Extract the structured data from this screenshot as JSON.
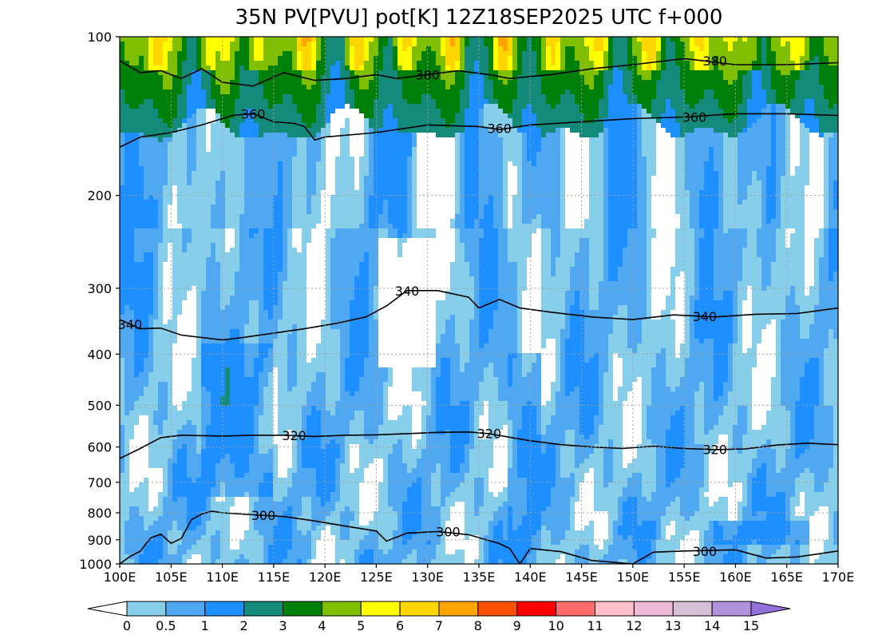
{
  "chart_data": {
    "type": "heatmap",
    "title": "35N PV[PVU] pot[K] 12Z18SEP2025 UTC f+000",
    "x_range": [
      100,
      170
    ],
    "x_ticks": [
      "100E",
      "105E",
      "110E",
      "115E",
      "120E",
      "125E",
      "130E",
      "135E",
      "140E",
      "145E",
      "150E",
      "155E",
      "160E",
      "165E",
      "170E"
    ],
    "y_scale": "log",
    "y_range": [
      1000,
      100
    ],
    "y_ticks": [
      100,
      200,
      300,
      400,
      500,
      600,
      700,
      800,
      900,
      1000
    ],
    "grid": true,
    "colorbar": {
      "levels": [
        "0",
        "0.5",
        "1",
        "2",
        "3",
        "4",
        "5",
        "6",
        "7",
        "8",
        "9",
        "10",
        "11",
        "12",
        "13",
        "14",
        "15"
      ],
      "colors": [
        "#87ceeb",
        "#4fa8f0",
        "#1e8fff",
        "#138a7a",
        "#00800a",
        "#7fbf00",
        "#ffff00",
        "#ffd700",
        "#ffa500",
        "#ff5000",
        "#ff0000",
        "#ff6a6a",
        "#ffc0cb",
        "#eebad6",
        "#d8bfd8",
        "#b392dc"
      ],
      "under_color": "#ffffff",
      "over_color": "#9370db"
    },
    "pv_fill_colors": {
      "lt0": "#ffffff",
      "0_0.5": "#87ceeb",
      "0.5_1": "#4fa8f0",
      "1_2": "#1e8fff",
      "2_3": "#138a7a",
      "3_4": "#00800a",
      "4_5": "#7fbf00",
      "5_6": "#ffff00",
      "6_7": "#ffd700",
      "7_8": "#ffa500",
      "8_9": "#ff5000",
      "9_10": "#ff0000"
    },
    "theta_contours": [
      {
        "value": 380,
        "points": [
          [
            100,
            111
          ],
          [
            102,
            117
          ],
          [
            104,
            116
          ],
          [
            106,
            120
          ],
          [
            108,
            115
          ],
          [
            110,
            122
          ],
          [
            113,
            124
          ],
          [
            116,
            117
          ],
          [
            119,
            121
          ],
          [
            122,
            120
          ],
          [
            125,
            118
          ],
          [
            127,
            120
          ],
          [
            130,
            118
          ],
          [
            133,
            116
          ],
          [
            136,
            118
          ],
          [
            138,
            120
          ],
          [
            142,
            118
          ],
          [
            146,
            115
          ],
          [
            150,
            113
          ],
          [
            155,
            110
          ],
          [
            160,
            113
          ],
          [
            165,
            113
          ],
          [
            170,
            112
          ]
        ]
      },
      {
        "value": 360,
        "points": [
          [
            100,
            162
          ],
          [
            102,
            155
          ],
          [
            105,
            152
          ],
          [
            108,
            147
          ],
          [
            111,
            141
          ],
          [
            113,
            140
          ],
          [
            115,
            145
          ],
          [
            117,
            146
          ],
          [
            118,
            148
          ],
          [
            119,
            157
          ],
          [
            120,
            155
          ],
          [
            125,
            152
          ],
          [
            130,
            147
          ],
          [
            135,
            148
          ],
          [
            137,
            150
          ],
          [
            140,
            147
          ],
          [
            145,
            145
          ],
          [
            150,
            143
          ],
          [
            155,
            142
          ],
          [
            160,
            140
          ],
          [
            165,
            140
          ],
          [
            170,
            141
          ]
        ]
      },
      {
        "value": 340,
        "points": [
          [
            100,
            344
          ],
          [
            102,
            358
          ],
          [
            104,
            357
          ],
          [
            106,
            368
          ],
          [
            108,
            372
          ],
          [
            110,
            376
          ],
          [
            112,
            372
          ],
          [
            115,
            365
          ],
          [
            118,
            358
          ],
          [
            121,
            350
          ],
          [
            124,
            340
          ],
          [
            126,
            324
          ],
          [
            128,
            303
          ],
          [
            131,
            303
          ],
          [
            134,
            312
          ],
          [
            135,
            327
          ],
          [
            137,
            315
          ],
          [
            139,
            327
          ],
          [
            142,
            333
          ],
          [
            146,
            340
          ],
          [
            150,
            344
          ],
          [
            154,
            337
          ],
          [
            158,
            340
          ],
          [
            162,
            336
          ],
          [
            166,
            335
          ],
          [
            170,
            327
          ]
        ]
      },
      {
        "value": 320,
        "points": [
          [
            100,
            631
          ],
          [
            102,
            604
          ],
          [
            104,
            576
          ],
          [
            106,
            570
          ],
          [
            108,
            571
          ],
          [
            110,
            572
          ],
          [
            113,
            570
          ],
          [
            116,
            570
          ],
          [
            119,
            573
          ],
          [
            122,
            570
          ],
          [
            125,
            569
          ],
          [
            128,
            566
          ],
          [
            131,
            563
          ],
          [
            134,
            562
          ],
          [
            136,
            566
          ],
          [
            138,
            575
          ],
          [
            140,
            584
          ],
          [
            143,
            594
          ],
          [
            146,
            600
          ],
          [
            149,
            604
          ],
          [
            152,
            598
          ],
          [
            155,
            604
          ],
          [
            158,
            607
          ],
          [
            161,
            605
          ],
          [
            164,
            595
          ],
          [
            167,
            590
          ],
          [
            170,
            594
          ]
        ]
      },
      {
        "value": 300,
        "points": [
          [
            100,
            1000
          ],
          [
            101,
            968
          ],
          [
            102,
            946
          ],
          [
            103,
            893
          ],
          [
            104,
            878
          ],
          [
            105,
            914
          ],
          [
            106,
            895
          ],
          [
            107,
            824
          ],
          [
            108,
            804
          ],
          [
            109,
            794
          ],
          [
            110,
            800
          ],
          [
            113,
            807
          ],
          [
            116,
            813
          ],
          [
            119,
            829
          ],
          [
            122,
            848
          ],
          [
            125,
            866
          ],
          [
            126,
            905
          ],
          [
            128,
            874
          ],
          [
            131,
            868
          ],
          [
            134,
            880
          ],
          [
            137,
            915
          ],
          [
            138,
            935
          ],
          [
            139,
            1000
          ],
          [
            140,
            935
          ],
          [
            143,
            948
          ],
          [
            146,
            985
          ],
          [
            150,
            1000
          ],
          [
            152,
            950
          ],
          [
            155,
            945
          ],
          [
            160,
            940
          ],
          [
            163,
            975
          ],
          [
            166,
            970
          ],
          [
            170,
            945
          ]
        ]
      }
    ]
  }
}
